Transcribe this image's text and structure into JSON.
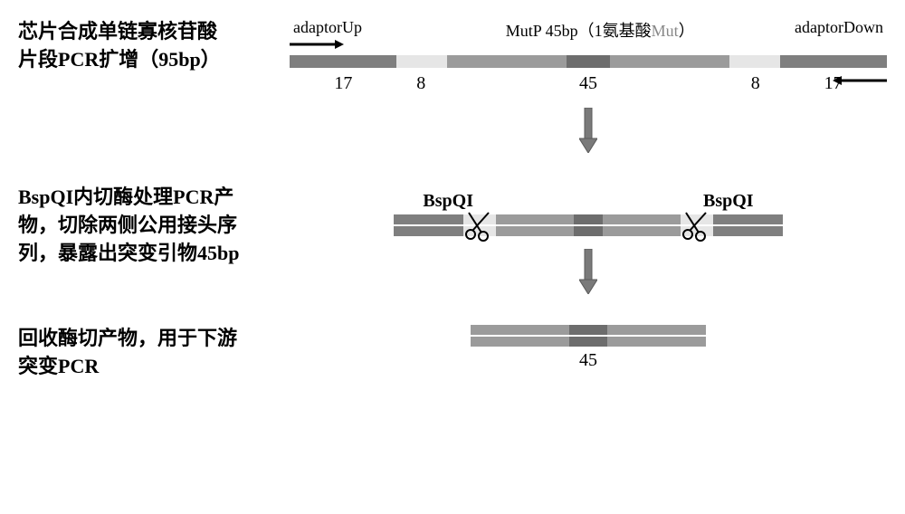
{
  "colors": {
    "adaptor": "#7f7f7f",
    "light": "#e6e6e6",
    "mutp": "#9b9b9b",
    "mutcenter": "#6d6d6d",
    "arrow_fill": "#7a7a7a",
    "arrow_border": "#5a5a5a",
    "black": "#000000",
    "text_gray": "#888888"
  },
  "step1": {
    "left_label_l1": "芯片合成单链寡核苷酸",
    "left_label_l2": "片段PCR扩增（95bp）",
    "adaptor_up": "adaptorUp",
    "mid_label_pre": "MutP 45bp（1氨基酸",
    "mid_label_mut": "Mut",
    "mid_label_post": "）",
    "adaptor_down": "adaptorDown",
    "segments": [
      {
        "w": 17,
        "key": "adaptor"
      },
      {
        "w": 8,
        "key": "light"
      },
      {
        "w": 19,
        "key": "mutp"
      },
      {
        "w": 7,
        "key": "mutcenter"
      },
      {
        "w": 19,
        "key": "mutp"
      },
      {
        "w": 8,
        "key": "light"
      },
      {
        "w": 17,
        "key": "adaptor"
      }
    ],
    "numbers": [
      {
        "val": "17",
        "pct": 9
      },
      {
        "val": "8",
        "pct": 22
      },
      {
        "val": "45",
        "pct": 50
      },
      {
        "val": "8",
        "pct": 78
      },
      {
        "val": "17",
        "pct": 91
      }
    ]
  },
  "step2": {
    "left_label_l1": "BspQI内切酶处理PCR产",
    "left_label_l2": "物，切除两侧公用接头序",
    "left_label_l3": "列，暴露出突变引物45bp",
    "enzyme_label": "BspQI",
    "segments": [
      {
        "w": 17,
        "key": "adaptor"
      },
      {
        "w": 8,
        "key": "light"
      },
      {
        "w": 19,
        "key": "mutp"
      },
      {
        "w": 7,
        "key": "mutcenter"
      },
      {
        "w": 19,
        "key": "mutp"
      },
      {
        "w": 8,
        "key": "light"
      },
      {
        "w": 17,
        "key": "adaptor"
      }
    ],
    "scissor_left_pct": 22,
    "scissor_right_pct": 78
  },
  "step3": {
    "left_label_l1": "回收酶切产物，用于下游",
    "left_label_l2": "突变PCR",
    "segments": [
      {
        "w": 42,
        "key": "mutp"
      },
      {
        "w": 16,
        "key": "mutcenter"
      },
      {
        "w": 42,
        "key": "mutp"
      }
    ],
    "label": "45"
  }
}
